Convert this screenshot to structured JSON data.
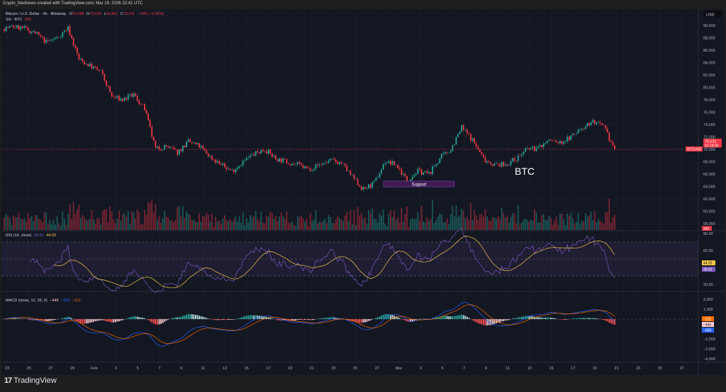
{
  "header": {
    "credit": "Crypto_feednews created with TradingView.com, Mar 19, 2026 22:41 UTC"
  },
  "legend": {
    "symbol": "Bitcoin / U.S. Dollar · 4h · Bitstamp",
    "o_label": "O",
    "o": "70,268",
    "h_label": "H",
    "h": "70,693",
    "l_label": "L",
    "l": "69,961",
    "c_label": "C",
    "c": "70,011",
    "change": "−249 (−0.35%)",
    "vol_label": "Vol · BTC",
    "vol": "202"
  },
  "currency_button": "USD",
  "price_axis": {
    "ticks": [
      "90,000",
      "88,000",
      "86,000",
      "84,000",
      "82,000",
      "80,000",
      "78,000",
      "76,000",
      "74,000",
      "72,000",
      "70,000",
      "68,000",
      "66,000",
      "64,000",
      "62,000",
      "60,000",
      "58,000"
    ]
  },
  "last_price": {
    "symbol_tag": "BTCUSD",
    "price": "70,011",
    "countdown": "01:18:26",
    "volume_tag": "202",
    "value": 70011
  },
  "annotations": {
    "asset_label": "BTC",
    "support_label": "Support"
  },
  "rsi": {
    "title": "RSI (14, close)",
    "value": "36.81",
    "ma_value": "44.93",
    "ticks": [
      "80.00",
      "60.00",
      "20.00"
    ],
    "upper_band": 70,
    "lower_band": 30
  },
  "macd": {
    "title": "MACD (close, 12, 26, 9)",
    "histogram": "−445",
    "macd": "−656",
    "signal": "−211",
    "ticks": [
      "2,000",
      "1,000",
      "−2,000",
      "−3,000",
      "−4,000"
    ]
  },
  "time_axis": {
    "ticks": [
      "23",
      "25",
      "27",
      "29",
      "Feb",
      "3",
      "5",
      "7",
      "9",
      "11",
      "13",
      "15",
      "17",
      "19",
      "21",
      "23",
      "25",
      "27",
      "Mar",
      "3",
      "5",
      "7",
      "9",
      "11",
      "13",
      "15",
      "17",
      "19",
      "21",
      "23",
      "25",
      "27"
    ]
  },
  "brand": "TradingView",
  "colors": {
    "up": "#26a69a",
    "down": "#f23645",
    "rsi": "#7e57c2",
    "rsi_ma": "#f7c948",
    "macd": "#2962ff",
    "signal": "#ff6d00",
    "background": "#131722"
  },
  "chart_data": {
    "type": "candlestick",
    "interval": "4h",
    "dates": [
      "Jan 22",
      "Jan 23",
      "Jan 24",
      "Jan 25",
      "Jan 26",
      "Jan 27",
      "Jan 28",
      "Jan 29",
      "Jan 30",
      "Jan 31",
      "Feb 1",
      "Feb 2",
      "Feb 3",
      "Feb 4",
      "Feb 5",
      "Feb 6",
      "Feb 7",
      "Feb 8",
      "Feb 9",
      "Feb 10",
      "Feb 11",
      "Feb 12",
      "Feb 13",
      "Feb 14",
      "Feb 15",
      "Feb 16",
      "Feb 17",
      "Feb 18",
      "Feb 19",
      "Feb 20",
      "Feb 21",
      "Feb 22",
      "Feb 23",
      "Feb 24",
      "Feb 25",
      "Feb 26",
      "Feb 27",
      "Feb 28",
      "Mar 1",
      "Mar 2",
      "Mar 3",
      "Mar 4",
      "Mar 5",
      "Mar 6",
      "Mar 7",
      "Mar 8",
      "Mar 9",
      "Mar 10",
      "Mar 11",
      "Mar 12",
      "Mar 13",
      "Mar 14",
      "Mar 15",
      "Mar 16",
      "Mar 17",
      "Mar 18",
      "Mar 19"
    ],
    "close": [
      89500,
      89800,
      89500,
      88800,
      87300,
      88000,
      89600,
      84500,
      83500,
      82500,
      78500,
      78000,
      78800,
      76500,
      70000,
      70500,
      69500,
      71200,
      70500,
      68800,
      67500,
      66500,
      68000,
      69200,
      70000,
      68500,
      68000,
      67500,
      66800,
      67500,
      68200,
      67800,
      65500,
      63500,
      64500,
      68000,
      67500,
      65000,
      66500,
      66000,
      68500,
      70000,
      73500,
      71500,
      68500,
      67500,
      67500,
      68500,
      70000,
      70200,
      71500,
      71000,
      72000,
      73500,
      74500,
      73500,
      70011
    ],
    "ylim": [
      56000,
      92000
    ]
  }
}
